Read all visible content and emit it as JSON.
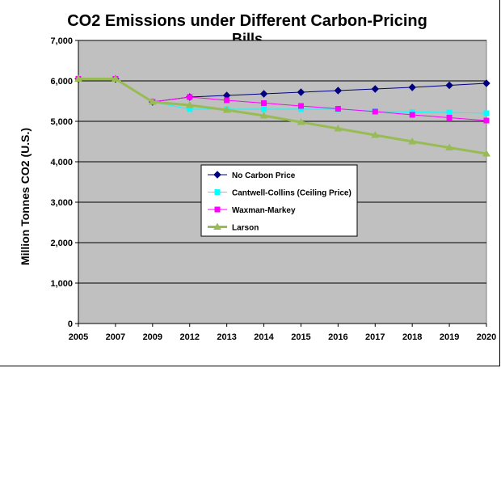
{
  "chart_data": {
    "type": "line",
    "title_line1": "CO2 Emissions under Different Carbon-Pricing",
    "title_line2": "Bills",
    "ylabel": "Million Tonnes CO2 (U.S.)",
    "xlabel": "",
    "categories": [
      "2005",
      "2007",
      "2009",
      "2012",
      "2013",
      "2014",
      "2015",
      "2016",
      "2017",
      "2018",
      "2019",
      "2020"
    ],
    "ylim": [
      0,
      7000
    ],
    "yticks": [
      0,
      1000,
      2000,
      3000,
      4000,
      5000,
      6000,
      7000
    ],
    "ytick_labels": [
      "0",
      "1,000",
      "2,000",
      "3,000",
      "4,000",
      "5,000",
      "6,000",
      "7,000"
    ],
    "grid": "horizontal",
    "plot_background": "#c0c0c0",
    "legend_placement": "center",
    "series": [
      {
        "name": "No Carbon Price",
        "color": "#000080",
        "marker": "diamond",
        "values": [
          6050,
          6050,
          5480,
          5600,
          5640,
          5680,
          5720,
          5760,
          5800,
          5840,
          5890,
          5940
        ]
      },
      {
        "name": "Cantwell-Collins (Ceiling Price)",
        "color": "#00ffff",
        "marker": "square",
        "values": [
          6050,
          6050,
          5480,
          5300,
          5300,
          5300,
          5300,
          5300,
          5250,
          5230,
          5220,
          5200
        ]
      },
      {
        "name": "Waxman-Markey",
        "color": "#ff00ff",
        "marker": "square",
        "values": [
          6050,
          6050,
          5480,
          5600,
          5520,
          5450,
          5380,
          5310,
          5240,
          5160,
          5090,
          5020
        ]
      },
      {
        "name": "Larson",
        "color": "#99bb55",
        "marker": "triangle",
        "values": [
          6050,
          6050,
          5480,
          5400,
          5280,
          5140,
          4980,
          4820,
          4660,
          4500,
          4350,
          4200
        ]
      }
    ]
  }
}
